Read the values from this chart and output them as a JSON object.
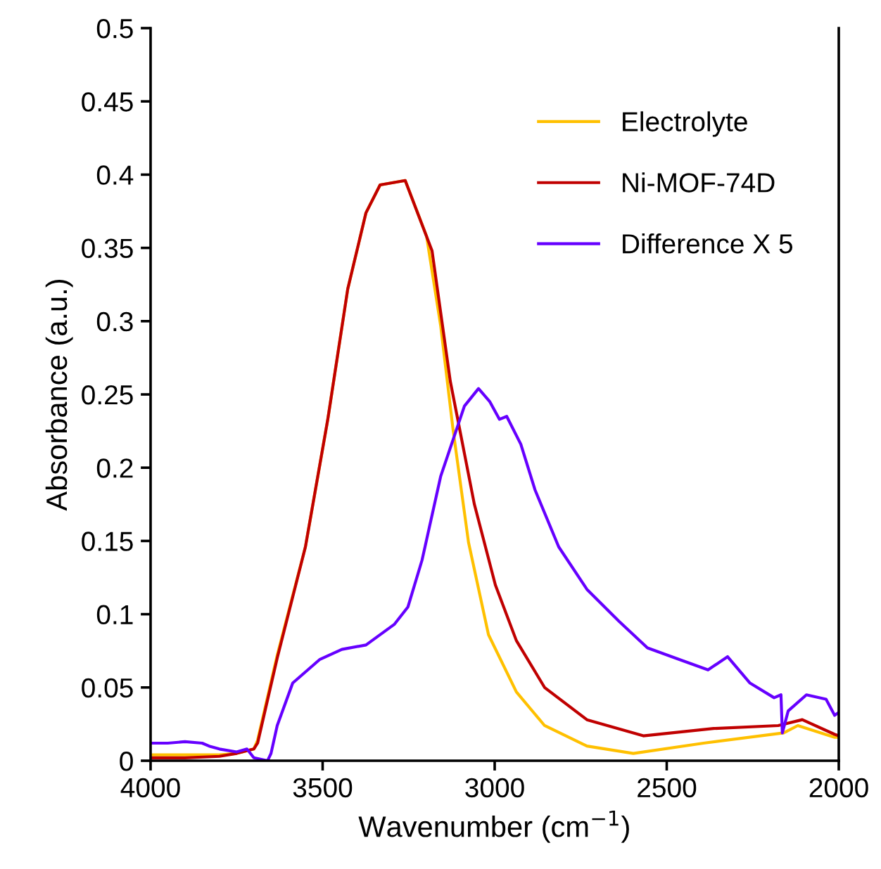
{
  "chart_data": {
    "type": "line",
    "xlabel": "Wavenumber (cm$^{−1}$)",
    "ylabel": "Absorbance (a.u.)",
    "xlim": [
      4000,
      2000
    ],
    "xticks": [
      4000,
      3500,
      3000,
      2500,
      2000
    ],
    "ylim": [
      0,
      0.5
    ],
    "yticks": [
      0,
      0.05,
      0.1,
      0.15,
      0.2,
      0.25,
      0.3,
      0.35,
      0.4,
      0.45,
      0.5
    ],
    "grid": false,
    "legend": "top right",
    "marker": "none",
    "line_style": "solid",
    "series": [
      {
        "name": "Electrolyte",
        "color": "#ffc000",
        "x": [
          4000,
          3900,
          3800,
          3750,
          3700,
          3689,
          3632,
          3550,
          3485,
          3427,
          3374,
          3333,
          3260,
          3198,
          3157,
          3121,
          3076,
          3018,
          2937,
          2855,
          2732,
          2597,
          2393,
          2160,
          2119,
          2012,
          2000
        ],
        "values": [
          0.004,
          0.004,
          0.004,
          0.005,
          0.008,
          0.014,
          0.072,
          0.146,
          0.233,
          0.322,
          0.374,
          0.393,
          0.396,
          0.358,
          0.297,
          0.226,
          0.149,
          0.086,
          0.047,
          0.024,
          0.01,
          0.005,
          0.012,
          0.019,
          0.024,
          0.016,
          0.016
        ]
      },
      {
        "name": "Ni-MOF-74D",
        "color": "#c00000",
        "x": [
          4000,
          3900,
          3800,
          3750,
          3700,
          3689,
          3632,
          3550,
          3485,
          3427,
          3374,
          3333,
          3260,
          3182,
          3129,
          3059,
          2998,
          2937,
          2855,
          2732,
          2568,
          2364,
          2176,
          2106,
          2012,
          2000
        ],
        "values": [
          0.002,
          0.002,
          0.003,
          0.005,
          0.008,
          0.012,
          0.07,
          0.146,
          0.233,
          0.322,
          0.374,
          0.393,
          0.396,
          0.348,
          0.259,
          0.175,
          0.12,
          0.082,
          0.05,
          0.028,
          0.017,
          0.022,
          0.024,
          0.028,
          0.018,
          0.017
        ]
      },
      {
        "name": "Difference X 5",
        "color": "#6600ff",
        "x": [
          4000,
          3950,
          3900,
          3850,
          3830,
          3800,
          3750,
          3720,
          3700,
          3660,
          3650,
          3632,
          3587,
          3509,
          3444,
          3374,
          3292,
          3252,
          3211,
          3157,
          3088,
          3047,
          3014,
          2986,
          2965,
          2924,
          2883,
          2814,
          2732,
          2638,
          2556,
          2462,
          2380,
          2323,
          2258,
          2188,
          2168,
          2164,
          2147,
          2094,
          2037,
          2012,
          2000
        ],
        "values": [
          0.012,
          0.012,
          0.013,
          0.012,
          0.01,
          0.008,
          0.006,
          0.008,
          0.002,
          0.0,
          0.005,
          0.024,
          0.053,
          0.069,
          0.076,
          0.079,
          0.093,
          0.105,
          0.137,
          0.194,
          0.242,
          0.254,
          0.245,
          0.233,
          0.235,
          0.216,
          0.185,
          0.146,
          0.117,
          0.095,
          0.077,
          0.069,
          0.062,
          0.071,
          0.053,
          0.043,
          0.045,
          0.019,
          0.034,
          0.045,
          0.042,
          0.031,
          0.033
        ]
      }
    ]
  }
}
